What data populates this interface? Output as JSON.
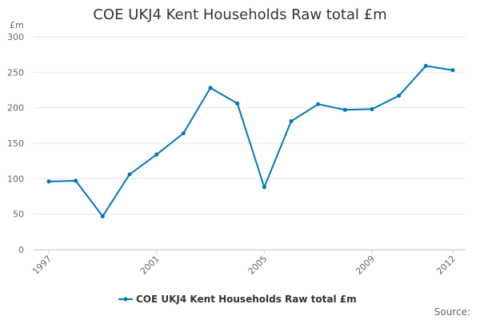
{
  "chart_data": {
    "type": "line",
    "title": "COE UKJ4 Kent Households Raw total £m",
    "ylabel": "£m",
    "xlabel": "",
    "x": [
      1997,
      1998,
      1999,
      2000,
      2001,
      2002,
      2003,
      2004,
      2005,
      2006,
      2007,
      2008,
      2009,
      2010,
      2011,
      2012
    ],
    "x_tick_labels": [
      "1997",
      "2001",
      "2005",
      "2009",
      "2012"
    ],
    "y_ticks": [
      0,
      50,
      100,
      150,
      200,
      250,
      300
    ],
    "ylim": [
      0,
      300
    ],
    "grid": true,
    "legend_position": "bottom",
    "series": [
      {
        "name": "COE UKJ4 Kent Households Raw total £m",
        "color": "#0077b6",
        "values": [
          96,
          97,
          47,
          106,
          134,
          164,
          228,
          206,
          88,
          181,
          205,
          197,
          198,
          217,
          259,
          253
        ]
      }
    ],
    "source": "Source:"
  }
}
